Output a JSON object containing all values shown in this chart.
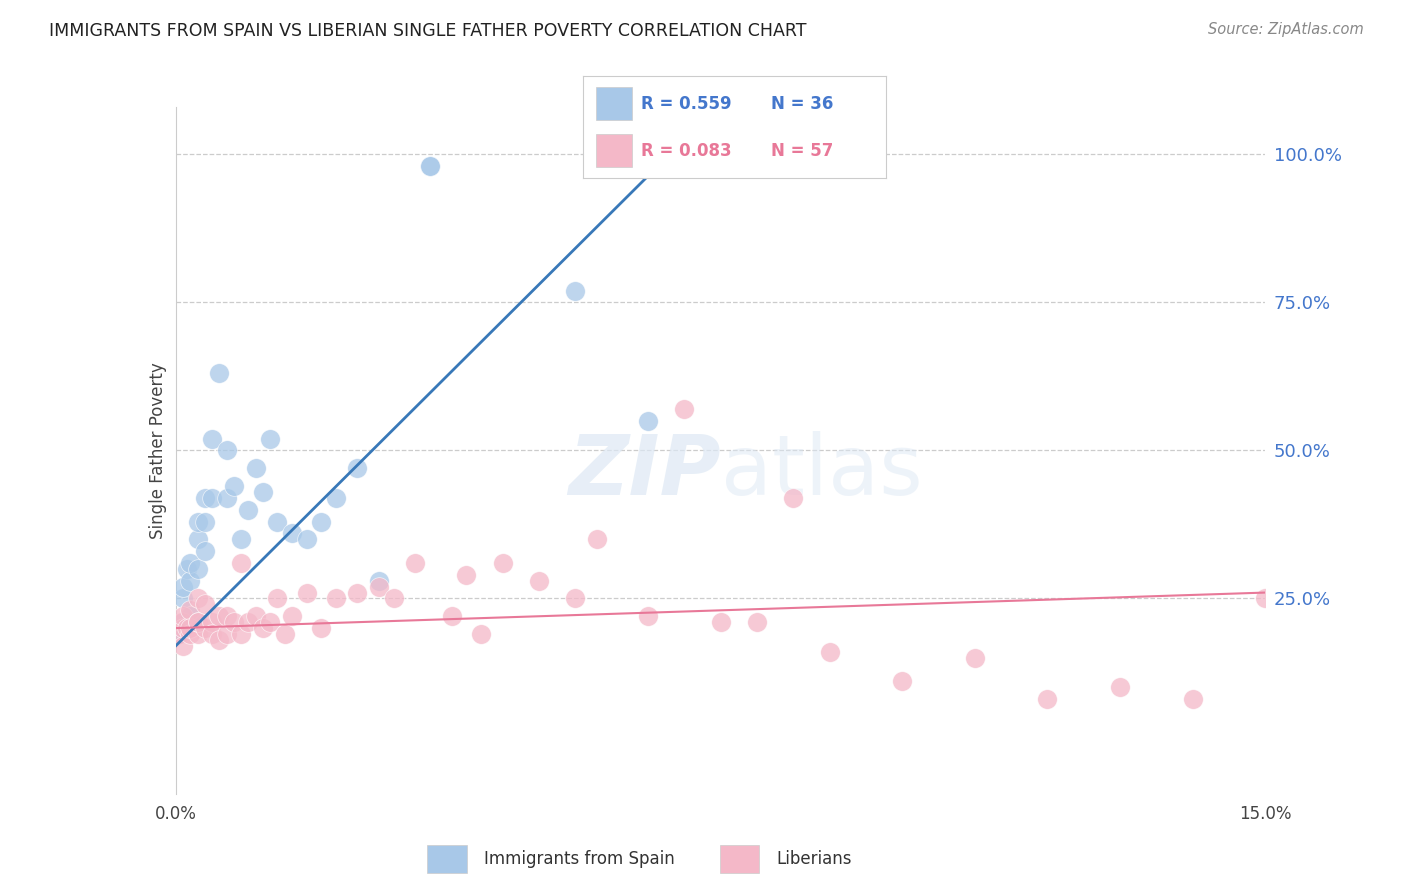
{
  "title": "IMMIGRANTS FROM SPAIN VS LIBERIAN SINGLE FATHER POVERTY CORRELATION CHART",
  "source": "Source: ZipAtlas.com",
  "ylabel": "Single Father Poverty",
  "ytick_labels": [
    "100.0%",
    "75.0%",
    "50.0%",
    "25.0%"
  ],
  "ytick_values": [
    1.0,
    0.75,
    0.5,
    0.25
  ],
  "xlim": [
    0.0,
    0.15
  ],
  "ylim": [
    -0.08,
    1.08
  ],
  "blue_color": "#a8c8e8",
  "pink_color": "#f4b8c8",
  "blue_line_color": "#3878b8",
  "pink_line_color": "#e87898",
  "blue_r": 0.559,
  "blue_n": 36,
  "pink_r": 0.083,
  "pink_n": 57,
  "blue_line_x0": 0.0,
  "blue_line_y0": 0.17,
  "blue_line_x1": 0.068,
  "blue_line_y1": 1.0,
  "pink_line_x0": 0.0,
  "pink_line_y0": 0.2,
  "pink_line_x1": 0.15,
  "pink_line_y1": 0.26,
  "blue_points_x": [
    0.0005,
    0.001,
    0.001,
    0.001,
    0.0015,
    0.002,
    0.002,
    0.002,
    0.003,
    0.003,
    0.003,
    0.004,
    0.004,
    0.004,
    0.005,
    0.005,
    0.006,
    0.007,
    0.007,
    0.008,
    0.009,
    0.01,
    0.011,
    0.012,
    0.013,
    0.014,
    0.016,
    0.018,
    0.02,
    0.022,
    0.025,
    0.028,
    0.035,
    0.035,
    0.055,
    0.065
  ],
  "blue_points_y": [
    0.19,
    0.21,
    0.25,
    0.27,
    0.3,
    0.22,
    0.28,
    0.31,
    0.3,
    0.35,
    0.38,
    0.33,
    0.38,
    0.42,
    0.42,
    0.52,
    0.63,
    0.42,
    0.5,
    0.44,
    0.35,
    0.4,
    0.47,
    0.43,
    0.52,
    0.38,
    0.36,
    0.35,
    0.38,
    0.42,
    0.47,
    0.28,
    0.98,
    0.98,
    0.77,
    0.55
  ],
  "pink_points_x": [
    0.0005,
    0.0008,
    0.001,
    0.001,
    0.001,
    0.0015,
    0.002,
    0.002,
    0.002,
    0.003,
    0.003,
    0.003,
    0.003,
    0.004,
    0.004,
    0.005,
    0.005,
    0.006,
    0.006,
    0.007,
    0.007,
    0.008,
    0.009,
    0.009,
    0.01,
    0.011,
    0.012,
    0.013,
    0.014,
    0.015,
    0.016,
    0.018,
    0.02,
    0.022,
    0.025,
    0.028,
    0.03,
    0.033,
    0.038,
    0.04,
    0.042,
    0.045,
    0.05,
    0.055,
    0.058,
    0.065,
    0.07,
    0.075,
    0.08,
    0.085,
    0.09,
    0.1,
    0.11,
    0.12,
    0.13,
    0.14,
    0.15
  ],
  "pink_points_y": [
    0.19,
    0.21,
    0.2,
    0.22,
    0.17,
    0.2,
    0.19,
    0.23,
    0.2,
    0.19,
    0.21,
    0.25,
    0.21,
    0.2,
    0.24,
    0.21,
    0.19,
    0.22,
    0.18,
    0.22,
    0.19,
    0.21,
    0.19,
    0.31,
    0.21,
    0.22,
    0.2,
    0.21,
    0.25,
    0.19,
    0.22,
    0.26,
    0.2,
    0.25,
    0.26,
    0.27,
    0.25,
    0.31,
    0.22,
    0.29,
    0.19,
    0.31,
    0.28,
    0.25,
    0.35,
    0.22,
    0.57,
    0.21,
    0.21,
    0.42,
    0.16,
    0.11,
    0.15,
    0.08,
    0.1,
    0.08,
    0.25
  ]
}
